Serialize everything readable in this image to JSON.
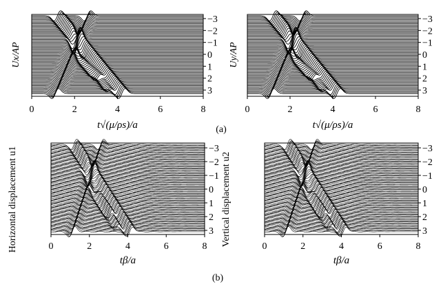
{
  "figure": {
    "panel_a_label": "(a)",
    "panel_b_label": "(b)"
  },
  "chart_data": [
    {
      "type": "line",
      "panel": "(a) left",
      "style": "waterfall",
      "xlabel": "t√(μ/ρs)/a",
      "ylabel": "Ux/AP",
      "xticks": [
        0,
        2,
        4,
        6,
        8
      ],
      "xlim": [
        0,
        8
      ],
      "yticks": [
        -3,
        -2,
        -1,
        0,
        1,
        2,
        3
      ],
      "ylim": [
        -3,
        3
      ],
      "trace_count": 60,
      "arrivals": [
        {
          "y": [
            -3,
            3
          ],
          "x": [
            1.2,
            4.2
          ]
        },
        {
          "y": [
            -3,
            3
          ],
          "x": [
            2.6,
            1.1
          ]
        },
        {
          "y": [
            -1.2,
            2.5
          ],
          "x": [
            2.0,
            3.6
          ]
        },
        {
          "y": [
            0,
            1.5
          ],
          "x": [
            2.2,
            3.0
          ]
        }
      ],
      "grid": false
    },
    {
      "type": "line",
      "panel": "(a) right",
      "style": "waterfall",
      "xlabel": "t√(μ/ρs)/a",
      "ylabel": "Uy/AP",
      "xticks": [
        0,
        2,
        4,
        6,
        8
      ],
      "xlim": [
        0,
        8
      ],
      "yticks": [
        -3,
        -2,
        -1,
        0,
        1,
        2,
        3
      ],
      "ylim": [
        -3,
        3
      ],
      "trace_count": 60,
      "arrivals": [
        {
          "y": [
            -3,
            3
          ],
          "x": [
            1.2,
            4.2
          ]
        },
        {
          "y": [
            -3,
            3
          ],
          "x": [
            2.6,
            1.1
          ]
        },
        {
          "y": [
            -1.2,
            2.5
          ],
          "x": [
            2.0,
            3.6
          ]
        },
        {
          "y": [
            0,
            1.5
          ],
          "x": [
            2.2,
            3.0
          ]
        }
      ],
      "grid": false
    },
    {
      "type": "line",
      "panel": "(b) left",
      "style": "waterfall",
      "xlabel": "tβ/a",
      "ylabel": "Horizontal displacement u1",
      "xticks": [
        0,
        2,
        4,
        6,
        8
      ],
      "xlim": [
        0,
        8
      ],
      "yticks": [
        -3,
        -2,
        -1,
        0,
        1,
        2,
        3
      ],
      "ylim": [
        -3,
        3
      ],
      "trace_count": 90,
      "arrivals": [
        {
          "y": [
            -3,
            3
          ],
          "x": [
            1.2,
            4.1
          ]
        },
        {
          "y": [
            -3,
            3
          ],
          "x": [
            2.6,
            1.1
          ]
        },
        {
          "y": [
            -1.2,
            2.5
          ],
          "x": [
            1.9,
            3.4
          ]
        },
        {
          "y": [
            0.3,
            1.6
          ],
          "x": [
            2.3,
            3.0
          ]
        }
      ],
      "grid": false
    },
    {
      "type": "line",
      "panel": "(b) right",
      "style": "waterfall",
      "xlabel": "tβ/a",
      "ylabel": "Vertical displacement u2",
      "xticks": [
        0,
        2,
        4,
        6,
        8
      ],
      "xlim": [
        0,
        8
      ],
      "yticks": [
        -3,
        -2,
        -1,
        0,
        1,
        2,
        3
      ],
      "ylim": [
        -3,
        3
      ],
      "trace_count": 90,
      "arrivals": [
        {
          "y": [
            -3,
            3
          ],
          "x": [
            1.2,
            4.1
          ]
        },
        {
          "y": [
            -3,
            3
          ],
          "x": [
            2.6,
            1.1
          ]
        },
        {
          "y": [
            -1.2,
            2.5
          ],
          "x": [
            1.9,
            3.4
          ]
        },
        {
          "y": [
            0.3,
            1.6
          ],
          "x": [
            2.3,
            3.0
          ]
        }
      ],
      "grid": false
    }
  ]
}
